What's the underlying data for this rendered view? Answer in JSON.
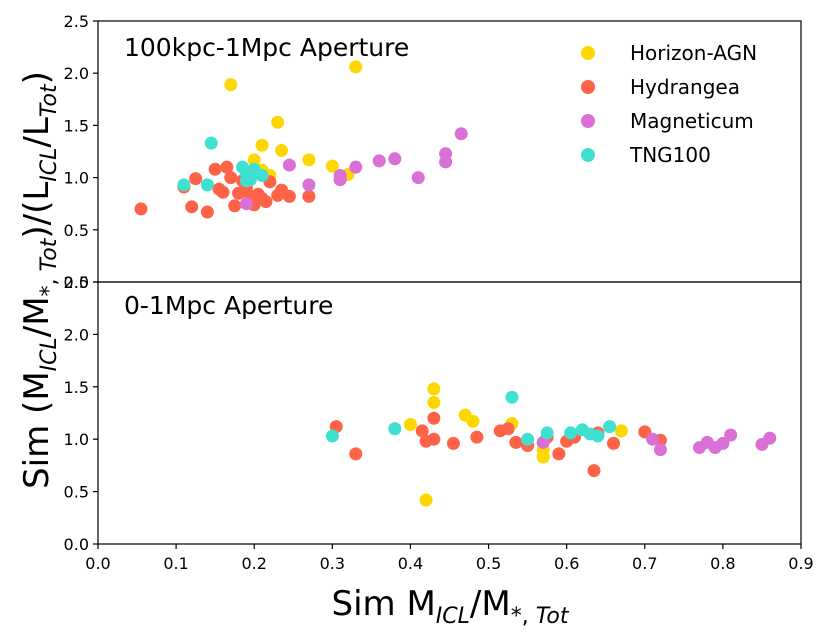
{
  "chart_data": {
    "type": "scatter",
    "xlabel": "Sim M_ICL/M_*,Tot",
    "ylabel": "Sim (M_ICL/M_*,Tot)/(L_ICL/L_Tot)",
    "xlim": [
      0.0,
      0.9
    ],
    "x_ticks": [
      "0.0",
      "0.1",
      "0.2",
      "0.3",
      "0.4",
      "0.5",
      "0.6",
      "0.7",
      "0.8",
      "0.9"
    ],
    "legend_location": "top-right",
    "series_styles": [
      {
        "name": "Horizon-AGN",
        "color": "#ffd700"
      },
      {
        "name": "Hydrangea",
        "color": "#ff6347"
      },
      {
        "name": "Magneticum",
        "color": "#da70d6"
      },
      {
        "name": "TNG100",
        "color": "#40e0d0"
      }
    ],
    "panels": [
      {
        "title": "100kpc-1Mpc Aperture",
        "ylim": [
          0.0,
          2.5
        ],
        "y_ticks": [
          "0.0",
          "0.5",
          "1.0",
          "1.5",
          "2.0",
          "2.5"
        ],
        "series": [
          {
            "name": "Horizon-AGN",
            "points": [
              [
                0.17,
                1.89
              ],
              [
                0.33,
                2.06
              ],
              [
                0.23,
                1.53
              ],
              [
                0.21,
                1.31
              ],
              [
                0.235,
                1.26
              ],
              [
                0.2,
                1.17
              ],
              [
                0.27,
                1.17
              ],
              [
                0.3,
                1.11
              ],
              [
                0.32,
                1.03
              ],
              [
                0.22,
                1.02
              ],
              [
                0.21,
                1.07
              ]
            ]
          },
          {
            "name": "Hydrangea",
            "points": [
              [
                0.055,
                0.7
              ],
              [
                0.11,
                0.91
              ],
              [
                0.125,
                0.99
              ],
              [
                0.12,
                0.72
              ],
              [
                0.14,
                0.67
              ],
              [
                0.15,
                1.08
              ],
              [
                0.155,
                0.89
              ],
              [
                0.165,
                1.1
              ],
              [
                0.17,
                1.0
              ],
              [
                0.16,
                0.86
              ],
              [
                0.175,
                0.73
              ],
              [
                0.18,
                0.85
              ],
              [
                0.185,
                0.97
              ],
              [
                0.19,
                0.9
              ],
              [
                0.195,
                0.82
              ],
              [
                0.2,
                0.74
              ],
              [
                0.205,
                0.84
              ],
              [
                0.21,
                0.8
              ],
              [
                0.215,
                0.77
              ],
              [
                0.22,
                0.96
              ],
              [
                0.23,
                0.83
              ],
              [
                0.235,
                0.88
              ],
              [
                0.245,
                0.82
              ],
              [
                0.27,
                0.82
              ]
            ]
          },
          {
            "name": "Magneticum",
            "points": [
              [
                0.19,
                0.75
              ],
              [
                0.245,
                1.12
              ],
              [
                0.27,
                0.93
              ],
              [
                0.31,
                0.98
              ],
              [
                0.31,
                1.02
              ],
              [
                0.33,
                1.1
              ],
              [
                0.36,
                1.16
              ],
              [
                0.38,
                1.18
              ],
              [
                0.41,
                1.0
              ],
              [
                0.445,
                1.15
              ],
              [
                0.445,
                1.23
              ],
              [
                0.465,
                1.42
              ]
            ]
          },
          {
            "name": "TNG100",
            "points": [
              [
                0.11,
                0.93
              ],
              [
                0.14,
                0.93
              ],
              [
                0.145,
                1.33
              ],
              [
                0.185,
                1.1
              ],
              [
                0.19,
                1.04
              ],
              [
                0.2,
                1.08
              ],
              [
                0.195,
                0.98
              ],
              [
                0.21,
                1.02
              ],
              [
                0.19,
                0.97
              ]
            ]
          }
        ]
      },
      {
        "title": "0-1Mpc Aperture",
        "ylim": [
          0.0,
          2.5
        ],
        "y_ticks": [
          "0.0",
          "0.5",
          "1.0",
          "1.5",
          "2.0",
          "2.5"
        ],
        "series": [
          {
            "name": "Horizon-AGN",
            "points": [
              [
                0.42,
                0.42
              ],
              [
                0.43,
                1.48
              ],
              [
                0.43,
                1.35
              ],
              [
                0.4,
                1.14
              ],
              [
                0.47,
                1.23
              ],
              [
                0.48,
                1.17
              ],
              [
                0.53,
                1.15
              ],
              [
                0.57,
                0.83
              ],
              [
                0.57,
                0.9
              ],
              [
                0.67,
                1.08
              ]
            ]
          },
          {
            "name": "Hydrangea",
            "points": [
              [
                0.33,
                0.86
              ],
              [
                0.305,
                1.12
              ],
              [
                0.415,
                1.08
              ],
              [
                0.43,
                1.2
              ],
              [
                0.42,
                0.98
              ],
              [
                0.43,
                1.0
              ],
              [
                0.455,
                0.96
              ],
              [
                0.485,
                1.02
              ],
              [
                0.515,
                1.08
              ],
              [
                0.525,
                1.1
              ],
              [
                0.535,
                0.97
              ],
              [
                0.55,
                0.94
              ],
              [
                0.575,
                1.02
              ],
              [
                0.59,
                0.86
              ],
              [
                0.6,
                0.98
              ],
              [
                0.61,
                1.02
              ],
              [
                0.635,
                0.7
              ],
              [
                0.64,
                1.06
              ],
              [
                0.66,
                0.96
              ],
              [
                0.7,
                1.07
              ],
              [
                0.72,
                0.99
              ]
            ]
          },
          {
            "name": "Magneticum",
            "points": [
              [
                0.57,
                0.97
              ],
              [
                0.71,
                1.0
              ],
              [
                0.72,
                0.9
              ],
              [
                0.77,
                0.92
              ],
              [
                0.78,
                0.97
              ],
              [
                0.79,
                0.92
              ],
              [
                0.8,
                0.96
              ],
              [
                0.81,
                1.04
              ],
              [
                0.85,
                0.95
              ],
              [
                0.86,
                1.01
              ]
            ]
          },
          {
            "name": "TNG100",
            "points": [
              [
                0.3,
                1.03
              ],
              [
                0.38,
                1.1
              ],
              [
                0.53,
                1.4
              ],
              [
                0.55,
                1.0
              ],
              [
                0.575,
                1.06
              ],
              [
                0.605,
                1.06
              ],
              [
                0.62,
                1.09
              ],
              [
                0.63,
                1.05
              ],
              [
                0.64,
                1.03
              ],
              [
                0.655,
                1.12
              ]
            ]
          }
        ]
      }
    ]
  }
}
